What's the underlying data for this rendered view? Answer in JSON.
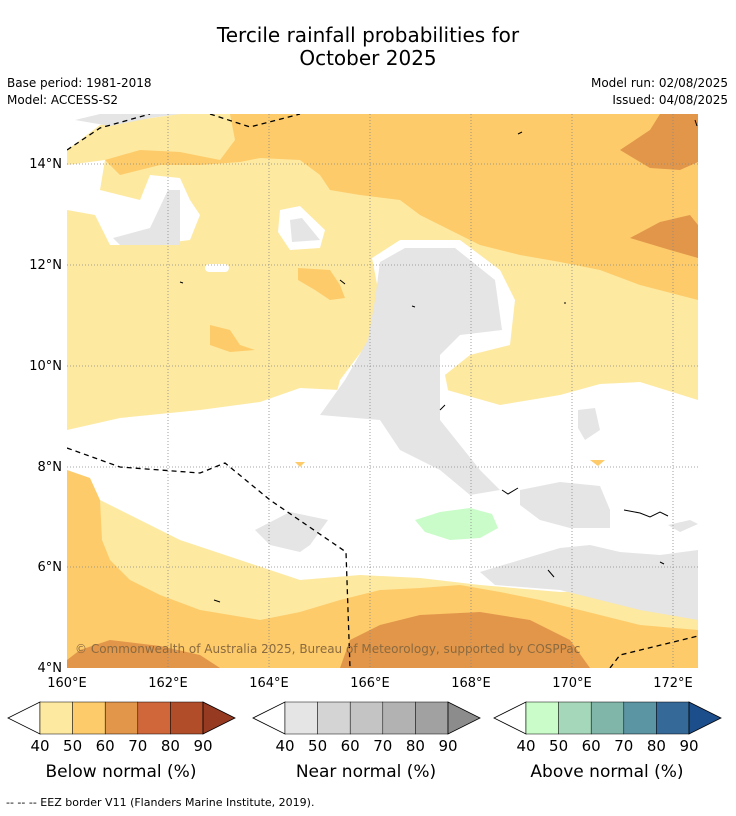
{
  "title": {
    "line1": "Tercile rainfall probabilities for",
    "line2": "October 2025"
  },
  "meta": {
    "base_period": "Base period: 1981-2018",
    "model": "Model: ACCESS-S2",
    "model_run": "Model run: 02/08/2025",
    "issued": "Issued: 04/08/2025"
  },
  "map": {
    "lat_labels": [
      "14°N",
      "12°N",
      "10°N",
      "8°N",
      "6°N",
      "4°N"
    ],
    "lon_labels": [
      "160°E",
      "162°E",
      "164°E",
      "166°E",
      "168°E",
      "170°E",
      "172°E"
    ],
    "copyright": "© Commonwealth of Australia 2025, Bureau of Meteorology, supported by COSPPac",
    "colors": {
      "below_50": "#fde9a0",
      "below_60": "#fdcb6a",
      "below_70": "#e2964a",
      "near_40": "#e5e5e5",
      "above_40": "#c9fcc9",
      "eez": "#000000",
      "grid": "#888888"
    }
  },
  "colorbars": [
    {
      "label": "Below normal (%)",
      "ticks": [
        "40",
        "50",
        "60",
        "70",
        "80",
        "90"
      ],
      "colors": [
        "#fde9a0",
        "#fdcb6a",
        "#e2964a",
        "#d0673a",
        "#b24d2a",
        "#963a21"
      ]
    },
    {
      "label": "Near normal (%)",
      "ticks": [
        "40",
        "50",
        "60",
        "70",
        "80",
        "90"
      ],
      "colors": [
        "#e5e5e5",
        "#d4d4d4",
        "#c4c4c4",
        "#b2b2b2",
        "#a1a1a1",
        "#8c8c8c"
      ]
    },
    {
      "label": "Above normal (%)",
      "ticks": [
        "40",
        "50",
        "60",
        "70",
        "80",
        "90"
      ],
      "colors": [
        "#c9fcc9",
        "#a5d8bb",
        "#80b6aa",
        "#5b94a2",
        "#356998",
        "#1c4e8b"
      ]
    }
  ],
  "footer": "--  --  -- EEZ border V11 (Flanders Marine Institute, 2019)."
}
